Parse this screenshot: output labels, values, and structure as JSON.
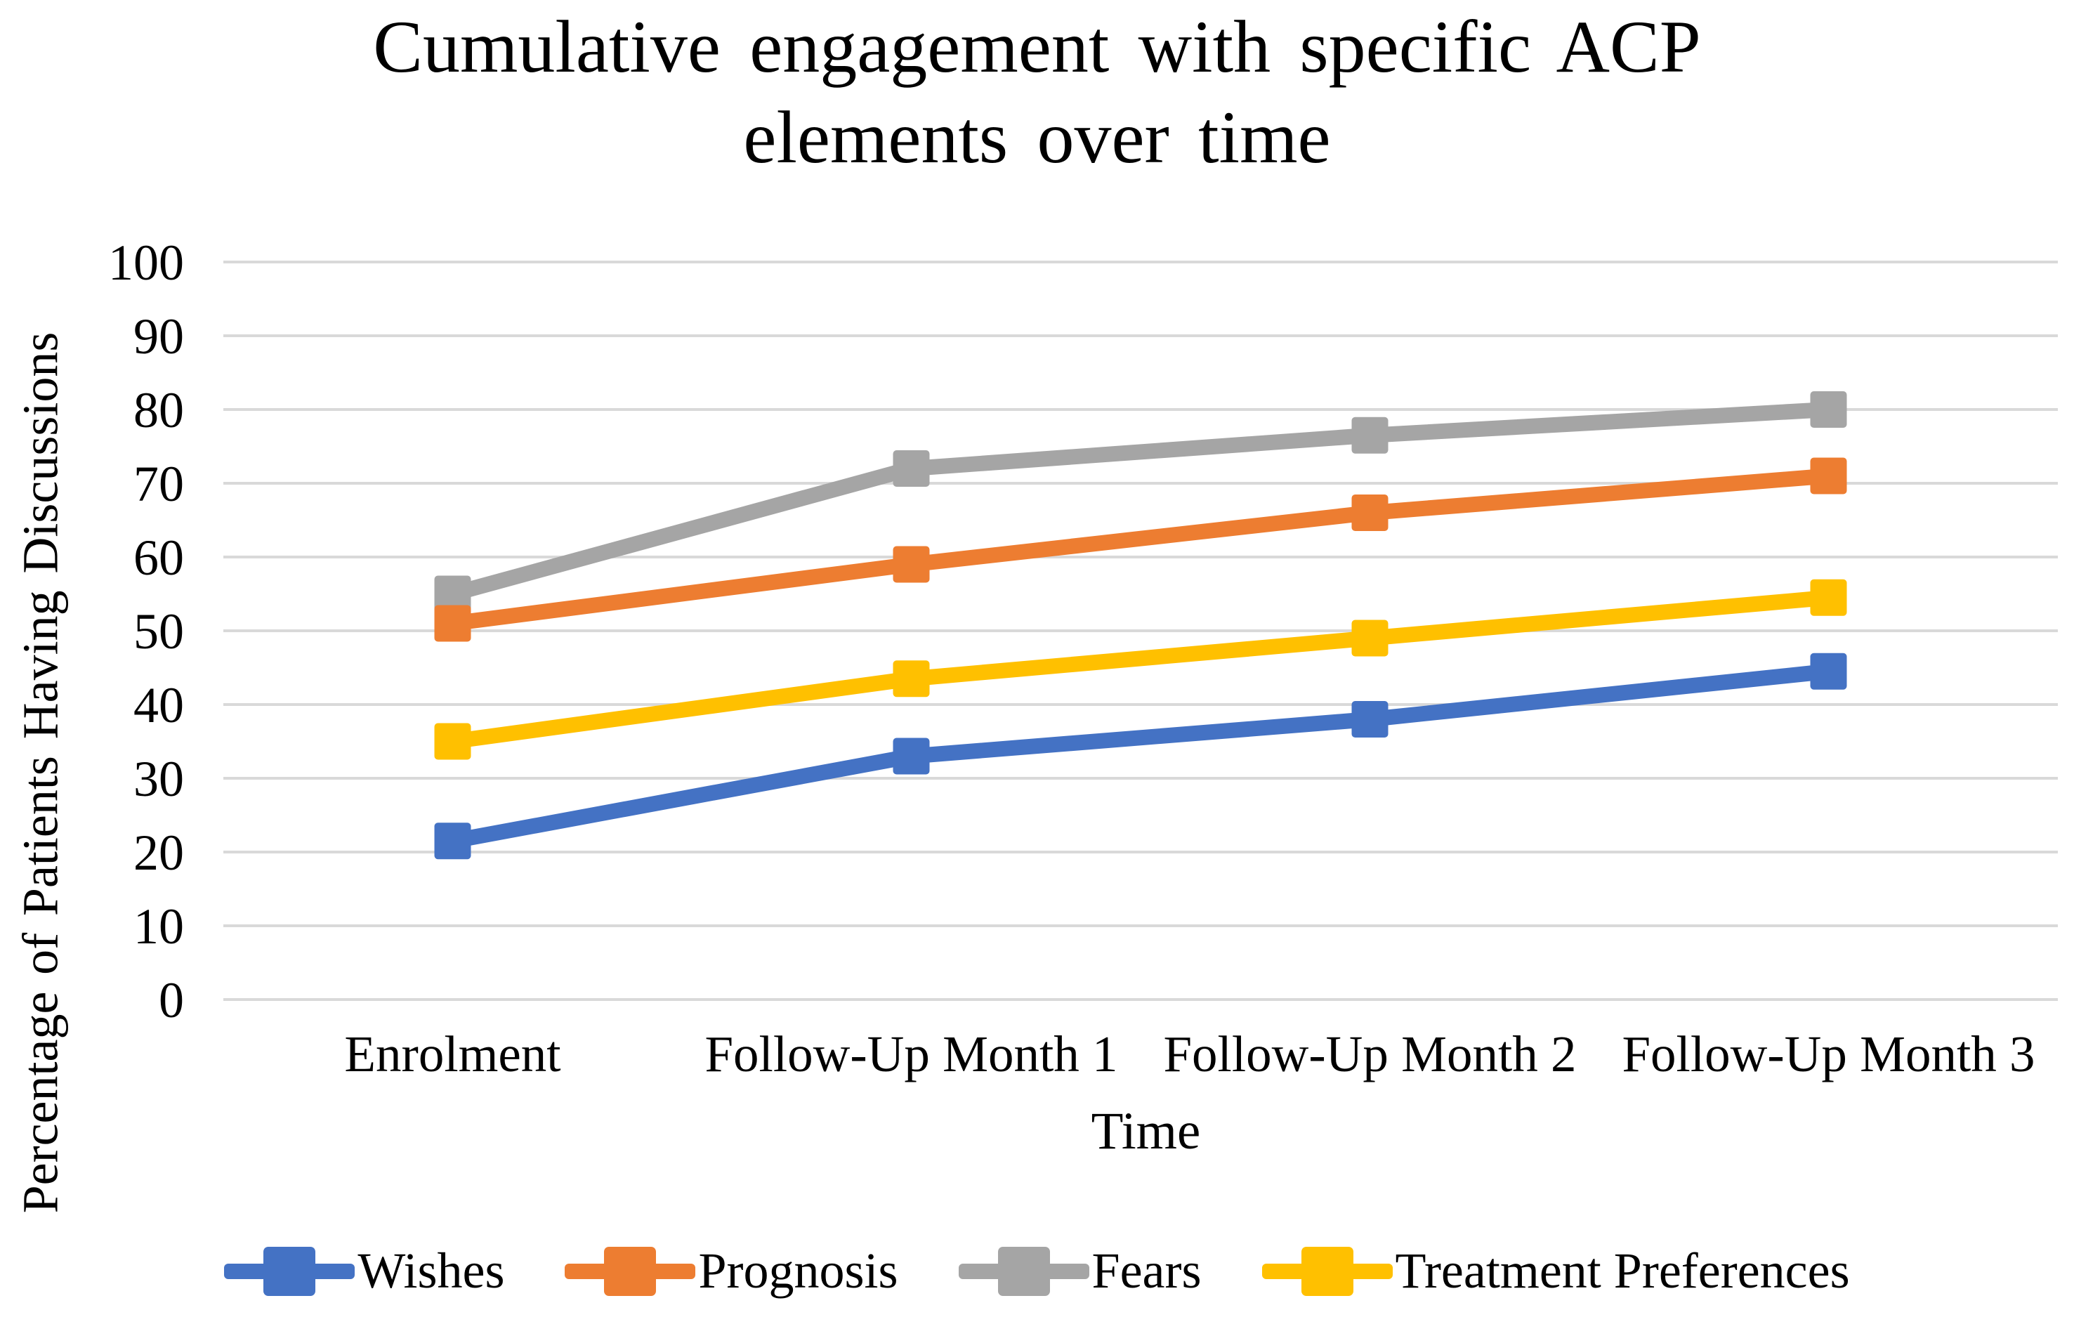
{
  "chart": {
    "title_line1": "Cumulative engagement with specific ACP",
    "title_line2": "elements over time",
    "y_axis_title": "Percentage of Patients Having Discussions",
    "x_axis_title": "Time"
  },
  "chart_data": {
    "type": "line",
    "title": "Cumulative engagement with specific ACP elements over time",
    "xlabel": "Time",
    "ylabel": "Percentage of Patients Having Discussions",
    "categories": [
      "Enrolment",
      "Follow-Up Month 1",
      "Follow-Up Month 2",
      "Follow-Up Month 3"
    ],
    "series": [
      {
        "name": "Wishes",
        "color": "#4472C4",
        "values": [
          21.5,
          33,
          38,
          44.5
        ]
      },
      {
        "name": "Prognosis",
        "color": "#ED7D31",
        "values": [
          51,
          59,
          66,
          71
        ]
      },
      {
        "name": "Fears",
        "color": "#A5A5A5",
        "values": [
          55,
          72,
          76.5,
          80
        ]
      },
      {
        "name": "Treatment Preferences",
        "color": "#FFC000",
        "values": [
          35,
          43.5,
          49,
          54.5
        ]
      }
    ],
    "ylim": [
      0,
      100
    ],
    "y_tick_step": 10,
    "y_tick_labels": [
      "0",
      "10",
      "20",
      "30",
      "40",
      "50",
      "60",
      "70",
      "80",
      "90",
      "100"
    ],
    "grid": "horizontal",
    "gridline_color": "#D9D9D9",
    "text_color": "#000000",
    "background_color": "#FFFFFF",
    "legend_position": "bottom",
    "marker_shape": "square"
  }
}
